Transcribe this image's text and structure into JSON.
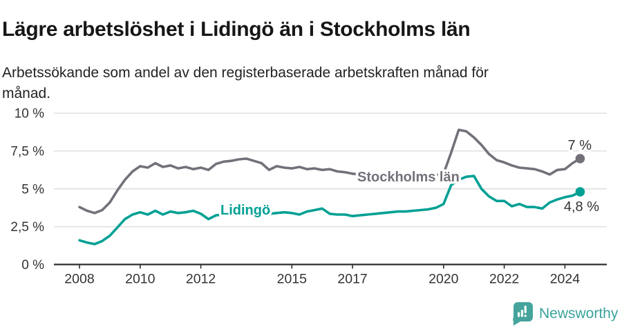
{
  "chart_data": {
    "type": "line",
    "title": "Lägre arbetslöshet i Lidingö än i Stockholms län",
    "subtitle": "Arbetssökande som andel av den registerbaserade arbetskraften månad för månad.",
    "ylim": [
      0,
      10
    ],
    "yticks": [
      0,
      2.5,
      5,
      7.5,
      10
    ],
    "ytick_labels": [
      "0 %",
      "2,5 %",
      "5 %",
      "7,5 %",
      "10 %"
    ],
    "xticks": [
      2008,
      2010,
      2012,
      2015,
      2017,
      2020,
      2022,
      2024
    ],
    "xtick_labels": [
      "2008",
      "2010",
      "2012",
      "2015",
      "2017",
      "2020",
      "2022",
      "2024"
    ],
    "x_start": 2008.0,
    "x_step": 0.25,
    "x_end": 2024.5,
    "grid": true,
    "legend_position": "inline-labels",
    "series": [
      {
        "name": "Stockholms län",
        "color": "#74707A",
        "end_label": "7 %",
        "end_value": 7.0,
        "values": [
          3.8,
          3.55,
          3.4,
          3.6,
          4.1,
          4.9,
          5.6,
          6.15,
          6.5,
          6.4,
          6.7,
          6.45,
          6.55,
          6.35,
          6.45,
          6.3,
          6.4,
          6.25,
          6.65,
          6.8,
          6.85,
          6.95,
          7.0,
          6.85,
          6.7,
          6.25,
          6.5,
          6.4,
          6.35,
          6.45,
          6.3,
          6.35,
          6.25,
          6.3,
          6.15,
          6.1,
          6.0,
          5.95,
          5.9,
          5.8,
          5.75,
          5.7,
          5.65,
          5.7,
          5.75,
          5.8,
          5.85,
          5.9,
          6.0,
          7.4,
          8.9,
          8.8,
          8.4,
          7.9,
          7.3,
          6.9,
          6.75,
          6.55,
          6.4,
          6.35,
          6.3,
          6.15,
          5.95,
          6.25,
          6.3,
          6.7,
          7.0
        ]
      },
      {
        "name": "Lidingö",
        "color": "#00A094",
        "end_label": "4,8 %",
        "end_value": 4.8,
        "values": [
          1.6,
          1.45,
          1.35,
          1.55,
          1.9,
          2.45,
          3.0,
          3.3,
          3.45,
          3.3,
          3.55,
          3.3,
          3.5,
          3.4,
          3.45,
          3.55,
          3.35,
          3.0,
          3.25,
          3.3,
          3.45,
          3.5,
          3.45,
          3.4,
          3.45,
          3.35,
          3.4,
          3.45,
          3.4,
          3.3,
          3.5,
          3.6,
          3.7,
          3.35,
          3.3,
          3.3,
          3.2,
          3.25,
          3.3,
          3.35,
          3.4,
          3.45,
          3.5,
          3.5,
          3.55,
          3.6,
          3.65,
          3.75,
          4.0,
          5.25,
          5.6,
          5.8,
          5.85,
          5.0,
          4.5,
          4.2,
          4.2,
          3.85,
          4.0,
          3.8,
          3.8,
          3.7,
          4.1,
          4.3,
          4.45,
          4.55,
          4.8
        ]
      }
    ]
  },
  "footer": {
    "brand": "Newsworthy"
  },
  "colors": {
    "title_text": "#161616",
    "axis_text": "#333333",
    "grid_line": "#DADADA",
    "axis_line": "#2E2E2E",
    "annotation_text": "#333333",
    "logo_teal": "#45A49C",
    "brand_text": "#3AA39B"
  }
}
